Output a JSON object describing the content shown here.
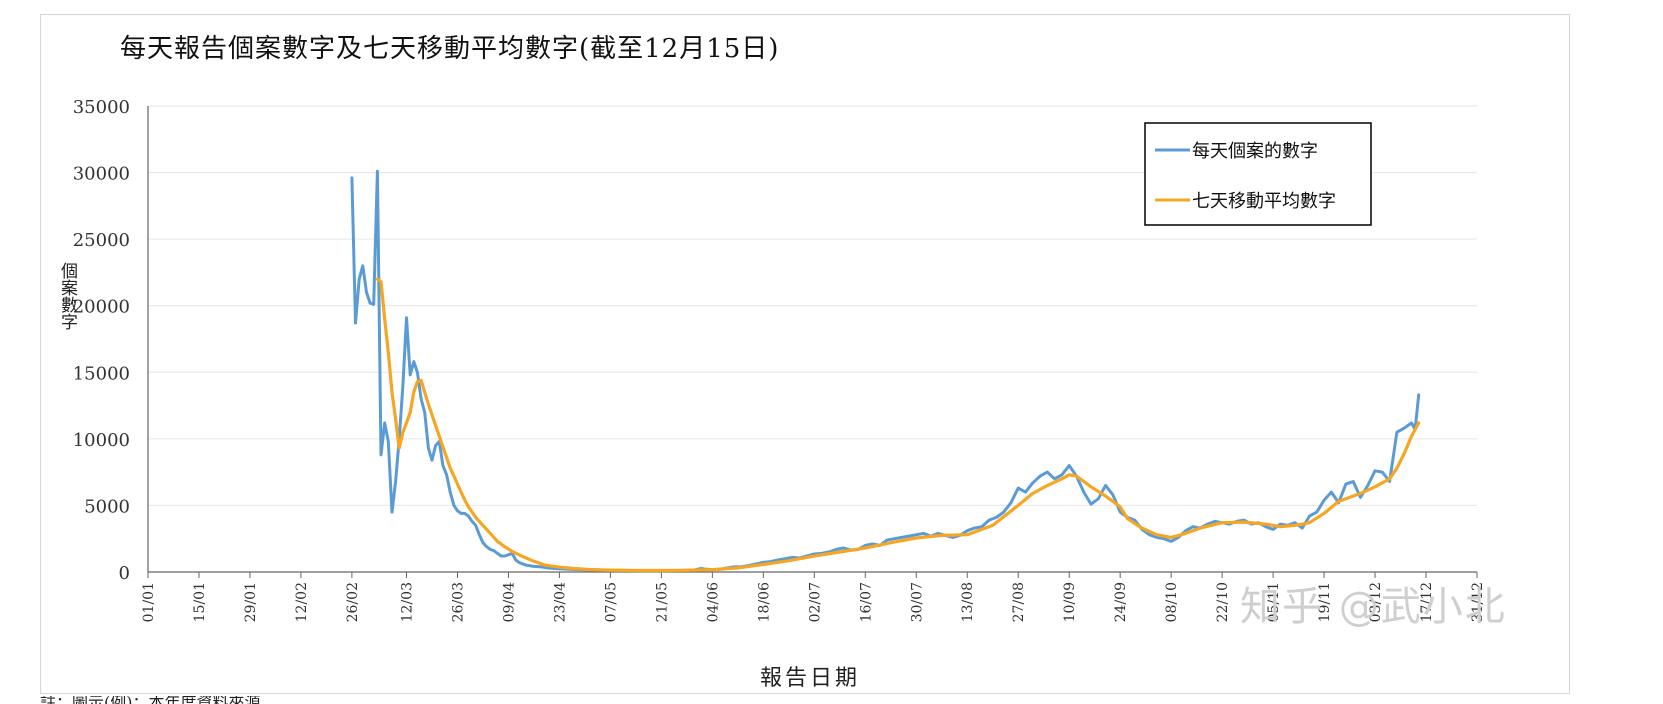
{
  "chart_data": {
    "type": "line",
    "title": "每天報告個案數字及七天移動平均數字(截至12月15日)",
    "xlabel": "報告日期",
    "ylabel": "個案數字",
    "ylim": [
      0,
      35000
    ],
    "yticks": [
      "0",
      "5000",
      "10000",
      "15000",
      "20000",
      "25000",
      "30000",
      "35000"
    ],
    "xlim": [
      "01/01",
      "31/12"
    ],
    "xticks": [
      "01/01",
      "15/01",
      "29/01",
      "12/02",
      "26/02",
      "12/03",
      "26/03",
      "09/04",
      "23/04",
      "07/05",
      "21/05",
      "04/06",
      "18/06",
      "02/07",
      "16/07",
      "30/07",
      "13/08",
      "27/08",
      "10/09",
      "24/09",
      "08/10",
      "22/10",
      "05/11",
      "19/11",
      "03/12",
      "17/12",
      "31/12"
    ],
    "grid": true,
    "legend_position": "top-right",
    "series": [
      {
        "name": "每天個案的數字",
        "color": "#5b9bd5",
        "points": [
          [
            "26/02",
            29600
          ],
          [
            "27/02",
            18700
          ],
          [
            "28/02",
            22000
          ],
          [
            "29/02",
            23000
          ],
          [
            "01/03",
            21000
          ],
          [
            "02/03",
            20200
          ],
          [
            "03/03",
            20100
          ],
          [
            "04/03",
            30100
          ],
          [
            "05/03",
            8800
          ],
          [
            "06/03",
            11200
          ],
          [
            "07/03",
            9800
          ],
          [
            "08/03",
            4500
          ],
          [
            "09/03",
            6800
          ],
          [
            "10/03",
            10000
          ],
          [
            "11/03",
            14000
          ],
          [
            "12/03",
            19100
          ],
          [
            "13/03",
            14800
          ],
          [
            "14/03",
            15800
          ],
          [
            "15/03",
            15000
          ],
          [
            "16/03",
            13000
          ],
          [
            "17/03",
            12000
          ],
          [
            "18/03",
            9300
          ],
          [
            "19/03",
            8400
          ],
          [
            "20/03",
            9500
          ],
          [
            "21/03",
            9800
          ],
          [
            "22/03",
            8000
          ],
          [
            "23/03",
            7300
          ],
          [
            "24/03",
            6000
          ],
          [
            "25/03",
            5000
          ],
          [
            "26/03",
            4600
          ],
          [
            "27/03",
            4400
          ],
          [
            "28/03",
            4400
          ],
          [
            "29/03",
            4200
          ],
          [
            "30/03",
            3800
          ],
          [
            "31/03",
            3500
          ],
          [
            "01/04",
            2800
          ],
          [
            "02/04",
            2200
          ],
          [
            "03/04",
            1900
          ],
          [
            "04/04",
            1700
          ],
          [
            "05/04",
            1600
          ],
          [
            "06/04",
            1400
          ],
          [
            "07/04",
            1200
          ],
          [
            "08/04",
            1200
          ],
          [
            "09/04",
            1300
          ],
          [
            "10/04",
            1400
          ],
          [
            "11/04",
            900
          ],
          [
            "12/04",
            700
          ],
          [
            "14/04",
            500
          ],
          [
            "16/04",
            420
          ],
          [
            "18/04",
            380
          ],
          [
            "20/04",
            300
          ],
          [
            "23/04",
            250
          ],
          [
            "26/04",
            200
          ],
          [
            "30/04",
            160
          ],
          [
            "03/05",
            140
          ],
          [
            "07/05",
            120
          ],
          [
            "12/05",
            110
          ],
          [
            "16/05",
            100
          ],
          [
            "21/05",
            100
          ],
          [
            "26/05",
            110
          ],
          [
            "30/05",
            150
          ],
          [
            "01/06",
            260
          ],
          [
            "02/06",
            220
          ],
          [
            "04/06",
            180
          ],
          [
            "06/06",
            200
          ],
          [
            "08/06",
            300
          ],
          [
            "10/06",
            380
          ],
          [
            "12/06",
            400
          ],
          [
            "14/06",
            480
          ],
          [
            "16/06",
            600
          ],
          [
            "18/06",
            720
          ],
          [
            "20/06",
            780
          ],
          [
            "22/06",
            900
          ],
          [
            "24/06",
            1000
          ],
          [
            "26/06",
            1100
          ],
          [
            "28/06",
            1050
          ],
          [
            "30/06",
            1200
          ],
          [
            "02/07",
            1350
          ],
          [
            "04/07",
            1400
          ],
          [
            "06/07",
            1500
          ],
          [
            "08/07",
            1700
          ],
          [
            "10/07",
            1800
          ],
          [
            "12/07",
            1650
          ],
          [
            "14/07",
            1700
          ],
          [
            "16/07",
            2000
          ],
          [
            "18/07",
            2100
          ],
          [
            "20/07",
            2000
          ],
          [
            "22/07",
            2400
          ],
          [
            "24/07",
            2500
          ],
          [
            "26/07",
            2600
          ],
          [
            "28/07",
            2700
          ],
          [
            "30/07",
            2800
          ],
          [
            "01/08",
            2900
          ],
          [
            "03/08",
            2700
          ],
          [
            "05/08",
            2900
          ],
          [
            "07/08",
            2750
          ],
          [
            "09/08",
            2600
          ],
          [
            "11/08",
            2750
          ],
          [
            "13/08",
            3100
          ],
          [
            "15/08",
            3300
          ],
          [
            "17/08",
            3400
          ],
          [
            "19/08",
            3900
          ],
          [
            "21/08",
            4100
          ],
          [
            "23/08",
            4500
          ],
          [
            "25/08",
            5200
          ],
          [
            "27/08",
            6300
          ],
          [
            "29/08",
            6000
          ],
          [
            "31/08",
            6700
          ],
          [
            "02/09",
            7200
          ],
          [
            "04/09",
            7500
          ],
          [
            "06/09",
            7000
          ],
          [
            "08/09",
            7300
          ],
          [
            "10/09",
            8000
          ],
          [
            "12/09",
            7200
          ],
          [
            "14/09",
            6000
          ],
          [
            "16/09",
            5100
          ],
          [
            "18/09",
            5500
          ],
          [
            "20/09",
            6500
          ],
          [
            "22/09",
            5800
          ],
          [
            "24/09",
            4500
          ],
          [
            "26/09",
            4100
          ],
          [
            "28/09",
            3900
          ],
          [
            "30/09",
            3200
          ],
          [
            "02/10",
            2800
          ],
          [
            "04/10",
            2600
          ],
          [
            "06/10",
            2500
          ],
          [
            "08/10",
            2300
          ],
          [
            "10/10",
            2600
          ],
          [
            "12/10",
            3100
          ],
          [
            "14/10",
            3400
          ],
          [
            "16/10",
            3300
          ],
          [
            "18/10",
            3600
          ],
          [
            "20/10",
            3800
          ],
          [
            "22/10",
            3700
          ],
          [
            "24/10",
            3600
          ],
          [
            "26/10",
            3800
          ],
          [
            "28/10",
            3900
          ],
          [
            "30/10",
            3600
          ],
          [
            "01/11",
            3700
          ],
          [
            "03/11",
            3400
          ],
          [
            "05/11",
            3200
          ],
          [
            "07/11",
            3600
          ],
          [
            "09/11",
            3500
          ],
          [
            "11/11",
            3700
          ],
          [
            "13/11",
            3300
          ],
          [
            "15/11",
            4200
          ],
          [
            "17/11",
            4500
          ],
          [
            "19/11",
            5400
          ],
          [
            "21/11",
            6000
          ],
          [
            "23/11",
            5200
          ],
          [
            "25/11",
            6600
          ],
          [
            "27/11",
            6800
          ],
          [
            "29/11",
            5600
          ],
          [
            "01/12",
            6500
          ],
          [
            "03/12",
            7600
          ],
          [
            "05/12",
            7500
          ],
          [
            "07/12",
            6800
          ],
          [
            "09/12",
            10500
          ],
          [
            "11/12",
            10800
          ],
          [
            "13/12",
            11200
          ],
          [
            "14/12",
            10700
          ],
          [
            "15/12",
            13300
          ]
        ]
      },
      {
        "name": "七天移動平均數字",
        "color": "#f5a623",
        "points": [
          [
            "04/03",
            22000
          ],
          [
            "05/03",
            21800
          ],
          [
            "06/03",
            19000
          ],
          [
            "07/03",
            16500
          ],
          [
            "08/03",
            13500
          ],
          [
            "09/03",
            11500
          ],
          [
            "10/03",
            9300
          ],
          [
            "11/03",
            10500
          ],
          [
            "12/03",
            11200
          ],
          [
            "13/03",
            12000
          ],
          [
            "14/03",
            13500
          ],
          [
            "15/03",
            14300
          ],
          [
            "16/03",
            14400
          ],
          [
            "17/03",
            13500
          ],
          [
            "18/03",
            12600
          ],
          [
            "19/03",
            11800
          ],
          [
            "20/03",
            11000
          ],
          [
            "21/03",
            10200
          ],
          [
            "22/03",
            9400
          ],
          [
            "23/03",
            8600
          ],
          [
            "24/03",
            7800
          ],
          [
            "25/03",
            7200
          ],
          [
            "26/03",
            6600
          ],
          [
            "27/03",
            6000
          ],
          [
            "28/03",
            5400
          ],
          [
            "29/03",
            4900
          ],
          [
            "30/03",
            4500
          ],
          [
            "31/03",
            4100
          ],
          [
            "02/04",
            3500
          ],
          [
            "04/04",
            2900
          ],
          [
            "06/04",
            2300
          ],
          [
            "08/04",
            1900
          ],
          [
            "10/04",
            1550
          ],
          [
            "13/04",
            1150
          ],
          [
            "16/04",
            800
          ],
          [
            "19/04",
            520
          ],
          [
            "23/04",
            360
          ],
          [
            "27/04",
            260
          ],
          [
            "01/05",
            190
          ],
          [
            "07/05",
            140
          ],
          [
            "14/05",
            115
          ],
          [
            "21/05",
            110
          ],
          [
            "28/05",
            130
          ],
          [
            "04/06",
            180
          ],
          [
            "11/06",
            310
          ],
          [
            "18/06",
            560
          ],
          [
            "25/06",
            850
          ],
          [
            "02/07",
            1200
          ],
          [
            "09/07",
            1500
          ],
          [
            "16/07",
            1800
          ],
          [
            "23/07",
            2200
          ],
          [
            "30/07",
            2550
          ],
          [
            "06/08",
            2750
          ],
          [
            "13/08",
            2800
          ],
          [
            "20/08",
            3500
          ],
          [
            "27/08",
            5000
          ],
          [
            "31/08",
            5900
          ],
          [
            "04/09",
            6500
          ],
          [
            "08/09",
            7000
          ],
          [
            "10/09",
            7300
          ],
          [
            "12/09",
            7200
          ],
          [
            "16/09",
            6400
          ],
          [
            "20/09",
            5700
          ],
          [
            "24/09",
            4900
          ],
          [
            "26/09",
            4000
          ],
          [
            "30/09",
            3300
          ],
          [
            "04/10",
            2800
          ],
          [
            "08/10",
            2600
          ],
          [
            "12/10",
            2900
          ],
          [
            "16/10",
            3300
          ],
          [
            "22/10",
            3700
          ],
          [
            "28/10",
            3750
          ],
          [
            "03/11",
            3600
          ],
          [
            "07/11",
            3400
          ],
          [
            "11/11",
            3500
          ],
          [
            "15/11",
            3700
          ],
          [
            "19/11",
            4400
          ],
          [
            "23/11",
            5300
          ],
          [
            "29/11",
            5900
          ],
          [
            "03/12",
            6400
          ],
          [
            "07/12",
            7000
          ],
          [
            "09/12",
            7800
          ],
          [
            "11/12",
            8900
          ],
          [
            "13/12",
            10200
          ],
          [
            "15/12",
            11200
          ]
        ]
      }
    ]
  },
  "watermark": "知乎 @武小北",
  "footnote": "註：圖示(例)：本年度資料來源"
}
